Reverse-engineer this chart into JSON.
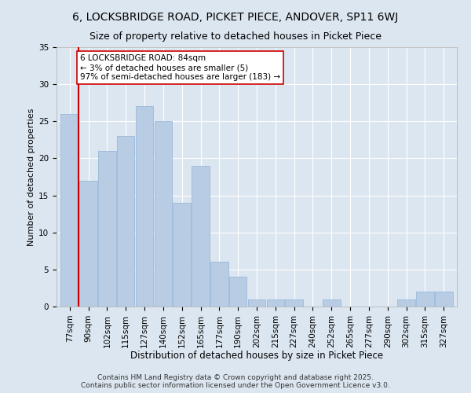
{
  "title1": "6, LOCKSBRIDGE ROAD, PICKET PIECE, ANDOVER, SP11 6WJ",
  "title2": "Size of property relative to detached houses in Picket Piece",
  "xlabel": "Distribution of detached houses by size in Picket Piece",
  "ylabel": "Number of detached properties",
  "categories": [
    "77sqm",
    "90sqm",
    "102sqm",
    "115sqm",
    "127sqm",
    "140sqm",
    "152sqm",
    "165sqm",
    "177sqm",
    "190sqm",
    "202sqm",
    "215sqm",
    "227sqm",
    "240sqm",
    "252sqm",
    "265sqm",
    "277sqm",
    "290sqm",
    "302sqm",
    "315sqm",
    "327sqm"
  ],
  "values": [
    26,
    17,
    21,
    23,
    27,
    25,
    14,
    19,
    6,
    4,
    1,
    1,
    1,
    0,
    1,
    0,
    0,
    0,
    1,
    2,
    2
  ],
  "bar_color": "#b8cce4",
  "bar_edge_color": "#8fb4d9",
  "subject_line_color": "#cc0000",
  "annotation_text": "6 LOCKSBRIDGE ROAD: 84sqm\n← 3% of detached houses are smaller (5)\n97% of semi-detached houses are larger (183) →",
  "annotation_box_color": "#ffffff",
  "annotation_box_edge_color": "#cc0000",
  "ylim": [
    0,
    35
  ],
  "yticks": [
    0,
    5,
    10,
    15,
    20,
    25,
    30,
    35
  ],
  "background_color": "#dce6f0",
  "plot_bg_color": "#dce6f0",
  "footer": "Contains HM Land Registry data © Crown copyright and database right 2025.\nContains public sector information licensed under the Open Government Licence v3.0.",
  "title1_fontsize": 10,
  "title2_fontsize": 9,
  "xlabel_fontsize": 8.5,
  "ylabel_fontsize": 8,
  "tick_fontsize": 7.5,
  "footer_fontsize": 6.5,
  "annot_fontsize": 7.5
}
